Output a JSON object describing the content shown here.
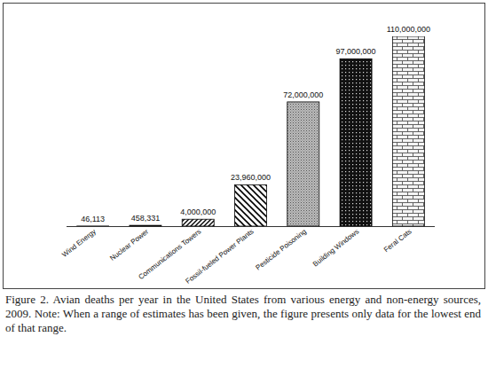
{
  "chart_data": {
    "type": "bar",
    "caption": "Figure 2.   Avian deaths per year in the United States from various energy and non-energy sources, 2009. Note: When a range of estimates has been given, the figure presents only data for the lowest end of that range.",
    "categories": [
      "Wind Energy",
      "Nuclear Power",
      "Communications Towers",
      "Fossil-fueled Power Plants",
      "Pesticide Poisoning",
      "Building Windows",
      "Feral Cats"
    ],
    "values": [
      46113,
      458331,
      4000000,
      23960000,
      72000000,
      97000000,
      110000000
    ],
    "value_labels": [
      "46,113",
      "458,331",
      "4,000,000",
      "23,960,000",
      "72,000,000",
      "97,000,000",
      "110,000,000"
    ],
    "color": "#000000",
    "ylim": [
      0,
      110000000
    ],
    "data_labels": true,
    "tick_labels": "x"
  }
}
